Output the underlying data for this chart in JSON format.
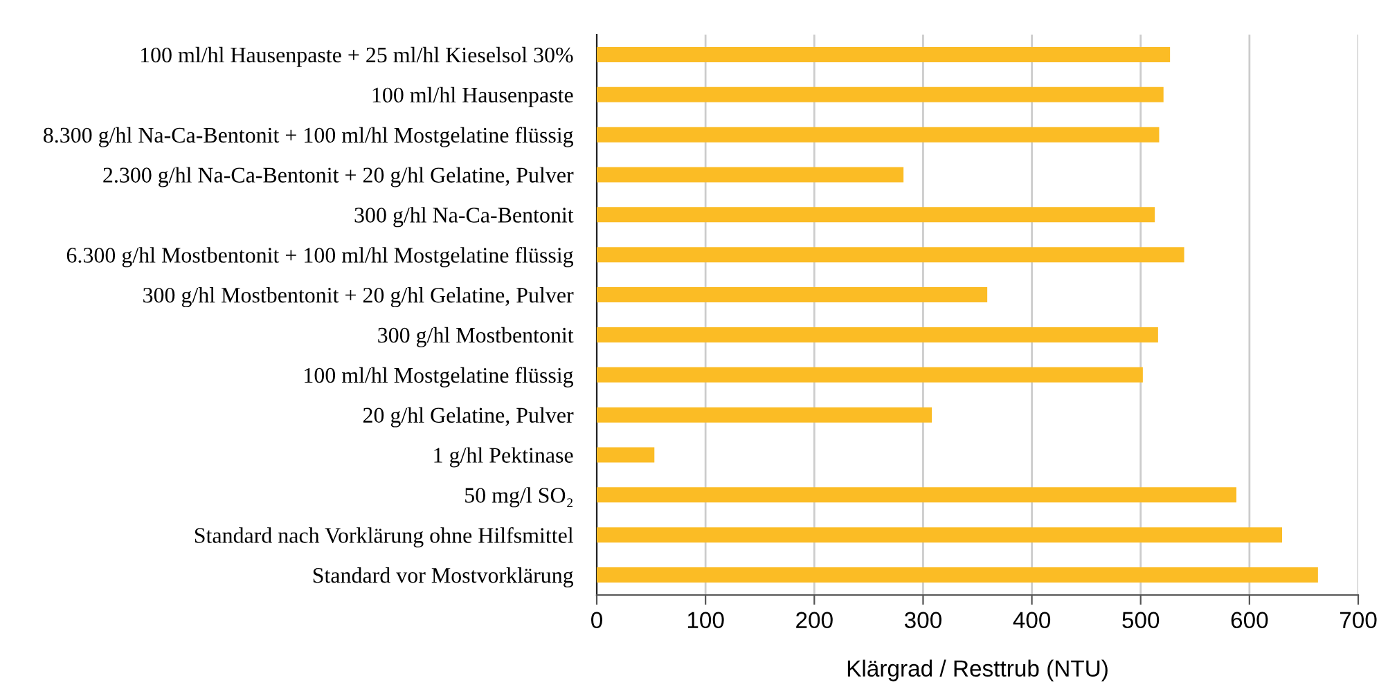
{
  "chart_data": {
    "type": "bar",
    "orientation": "horizontal",
    "xlabel": "Klärgrad / Resttrub (NTU)",
    "categories": [
      "100 ml/hl Hausenpaste + 25 ml/hl Kieselsol 30%",
      "100 ml/hl Hausenpaste",
      "8.300 g/hl Na-Ca-Bentonit + 100 ml/hl Mostgelatine flüssig",
      "2.300 g/hl Na-Ca-Bentonit + 20 g/hl Gelatine, Pulver",
      "300 g/hl Na-Ca-Bentonit",
      "6.300 g/hl Mostbentonit + 100 ml/hl Mostgelatine flüssig",
      "300 g/hl Mostbentonit + 20 g/hl Gelatine, Pulver",
      "300 g/hl Mostbentonit",
      "100 ml/hl Mostgelatine flüssig",
      "20 g/hl Gelatine, Pulver",
      "1 g/hl Pektinase",
      "50 mg/l SO₂",
      "Standard nach Vorklärung ohne Hilfsmittel",
      "Standard vor Mostvorklärung"
    ],
    "values": [
      527,
      521,
      517,
      282,
      513,
      540,
      359,
      516,
      502,
      308,
      53,
      588,
      630,
      663
    ],
    "color": "#fbbc25",
    "xlim": [
      0,
      700
    ],
    "xticks": [
      0,
      100,
      200,
      300,
      400,
      500,
      600,
      700
    ],
    "grid": "x"
  }
}
